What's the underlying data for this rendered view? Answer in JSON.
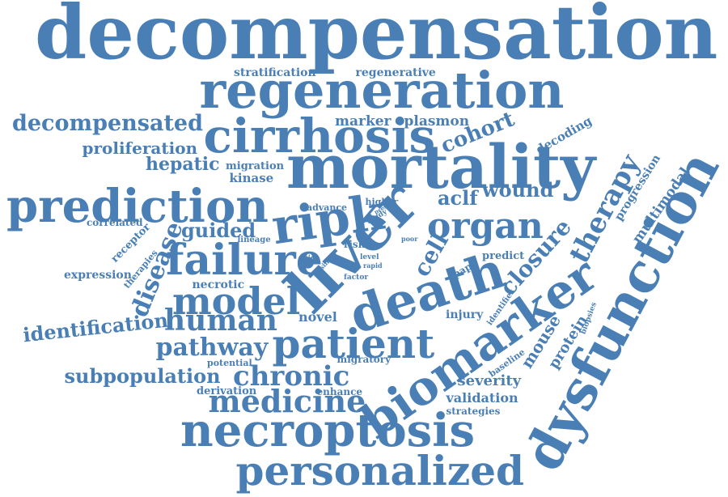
{
  "cloud": {
    "color": "#4a7fb5",
    "words": [
      "decompensation",
      "regeneration",
      "mortality",
      "cirrhosis",
      "prediction",
      "failure",
      "liver",
      "death",
      "biomarker",
      "dysfunction",
      "necroptosis",
      "personalized",
      "patient",
      "ripk",
      "organ",
      "model",
      "human",
      "medicine",
      "chronic",
      "pathway",
      "decompensated",
      "proliferation",
      "identification",
      "subpopulation",
      "therapy",
      "cohort",
      "wound",
      "aclf",
      "cell",
      "disease",
      "closure",
      "guided",
      "hepatic",
      "marker",
      "plasmon",
      "stratification",
      "regenerative",
      "decoding",
      "kinase",
      "migration",
      "multimodal",
      "progression",
      "mouse",
      "protein",
      "severity",
      "validation",
      "novel",
      "expression",
      "correlated",
      "receptor",
      "therapies",
      "necrotic",
      "injury",
      "potential",
      "derivation",
      "enhance",
      "strategies",
      "migratory",
      "baseline",
      "biopsies",
      "identifies",
      "predict",
      "apap",
      "advance",
      "higher",
      "study",
      "lineage",
      "risk",
      "guide",
      "level",
      "factor",
      "rapid",
      "single",
      "poor",
      "pres"
    ]
  }
}
